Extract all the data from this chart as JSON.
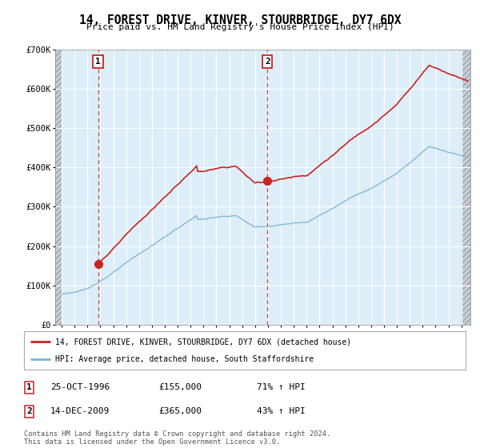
{
  "title": "14, FOREST DRIVE, KINVER, STOURBRIDGE, DY7 6DX",
  "subtitle": "Price paid vs. HM Land Registry's House Price Index (HPI)",
  "legend_line1": "14, FOREST DRIVE, KINVER, STOURBRIDGE, DY7 6DX (detached house)",
  "legend_line2": "HPI: Average price, detached house, South Staffordshire",
  "sale1_date": "25-OCT-1996",
  "sale1_price": 155000,
  "sale1_year": 1996.82,
  "sale1_hpi_pct": "71% ↑ HPI",
  "sale2_date": "14-DEC-2009",
  "sale2_price": 365000,
  "sale2_year": 2009.96,
  "sale2_hpi_pct": "43% ↑ HPI",
  "copyright_text": "Contains HM Land Registry data © Crown copyright and database right 2024.\nThis data is licensed under the Open Government Licence v3.0.",
  "hpi_color": "#7ab4d8",
  "sale_color": "#cc2222",
  "vline_color": "#cc2222",
  "background_plot": "#ddeef8",
  "grid_color": "#ffffff",
  "ylim": [
    0,
    700000
  ],
  "xlim_start": 1993.5,
  "xlim_end": 2025.7
}
